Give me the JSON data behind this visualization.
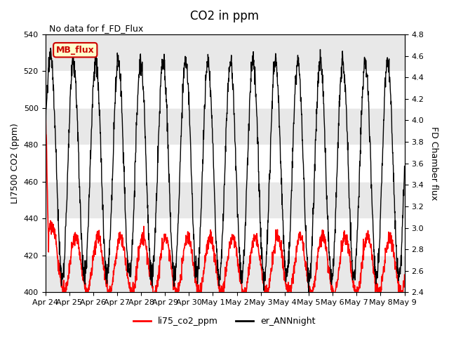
{
  "title": "CO2 in ppm",
  "top_left_text": "No data for f_FD_Flux",
  "ylabel_left": "LI7500 CO2 (ppm)",
  "ylabel_right": "FD Chamber flux",
  "ylim_left": [
    400,
    540
  ],
  "ylim_right": [
    2.4,
    4.8
  ],
  "yticks_left": [
    400,
    420,
    440,
    460,
    480,
    500,
    520,
    540
  ],
  "yticks_right": [
    2.4,
    2.6,
    2.8,
    3.0,
    3.2,
    3.4,
    3.6,
    3.8,
    4.0,
    4.2,
    4.4,
    4.6,
    4.8
  ],
  "xtick_labels": [
    "Apr 24",
    "Apr 25",
    "Apr 26",
    "Apr 27",
    "Apr 28",
    "Apr 29",
    "Apr 30",
    "May 1",
    "May 2",
    "May 3",
    "May 4",
    "May 5",
    "May 6",
    "May 7",
    "May 8",
    "May 9"
  ],
  "legend_entries": [
    "li75_co2_ppm",
    "er_ANNnight"
  ],
  "legend_colors": [
    "red",
    "black"
  ],
  "annotation_box": "MB_flux",
  "annotation_color": "#cc0000",
  "annotation_bg": "#ffffcc",
  "band_color": "#e8e8e8",
  "background_color": "#ffffff",
  "red_line_color": "#ff0000",
  "black_line_color": "#000000"
}
